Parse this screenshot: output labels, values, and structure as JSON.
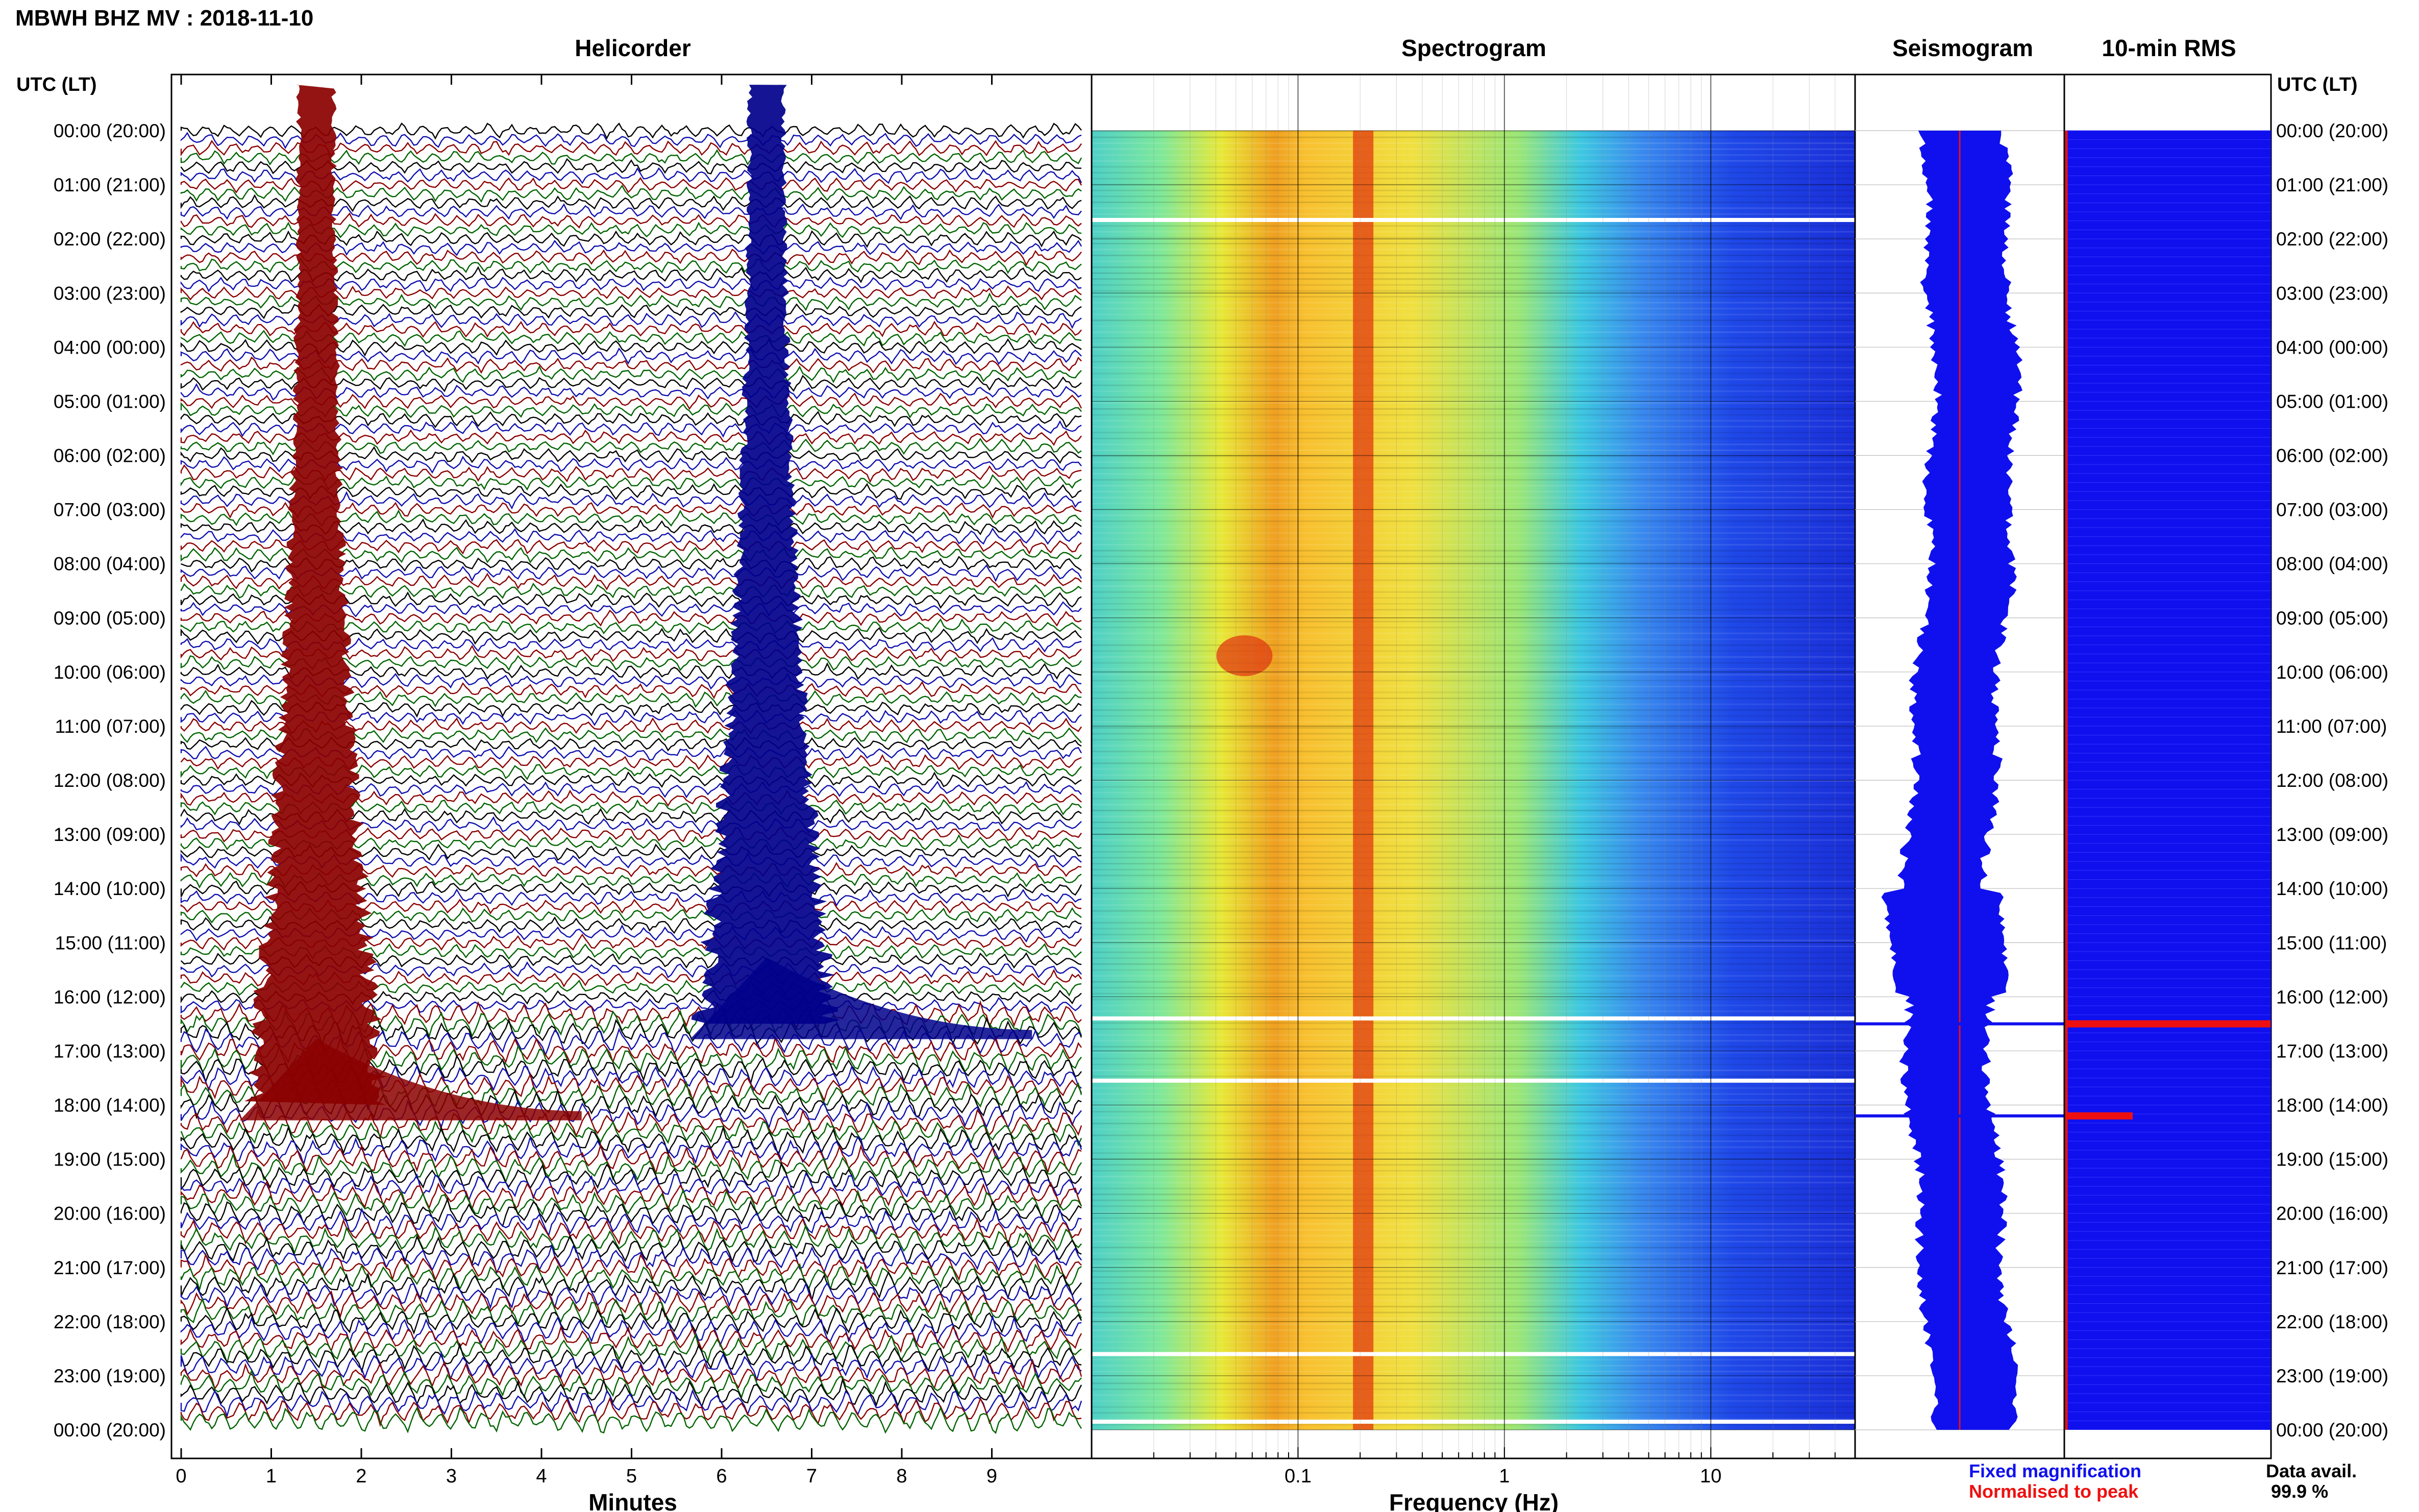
{
  "header": {
    "station_title": "MBWH BHZ MV : 2018-11-10",
    "left_time_header": "UTC (LT)",
    "right_time_header": "UTC (LT)"
  },
  "panels": {
    "helicorder": {
      "title": "Helicorder",
      "xlabel": "Minutes"
    },
    "spectrogram": {
      "title": "Spectrogram",
      "xlabel": "Frequency (Hz)"
    },
    "seismogram": {
      "title": "Seismogram"
    },
    "rms": {
      "title": "10-min RMS"
    }
  },
  "legend": {
    "fixed": "Fixed magnification",
    "normalised": "Normalised to peak",
    "fixed_color": "#1010ee",
    "normalised_color": "#ee1010"
  },
  "availability": {
    "label": "Data avail.",
    "value": "99.9 %"
  },
  "chart_data": [
    {
      "type": "line",
      "panel": "helicorder",
      "title": "Helicorder",
      "xlabel": "Minutes",
      "xlim": [
        0,
        10
      ],
      "x_ticks": [
        "0",
        "1",
        "2",
        "3",
        "4",
        "5",
        "6",
        "7",
        "8",
        "9"
      ],
      "time_labels": [
        "00:00 (20:00)",
        "01:00 (21:00)",
        "02:00 (22:00)",
        "03:00 (23:00)",
        "04:00 (00:00)",
        "05:00 (01:00)",
        "06:00 (02:00)",
        "07:00 (03:00)",
        "08:00 (04:00)",
        "09:00 (05:00)",
        "10:00 (06:00)",
        "11:00 (07:00)",
        "12:00 (08:00)",
        "13:00 (09:00)",
        "14:00 (10:00)",
        "15:00 (11:00)",
        "16:00 (12:00)",
        "17:00 (13:00)",
        "18:00 (14:00)",
        "19:00 (15:00)",
        "20:00 (16:00)",
        "21:00 (17:00)",
        "22:00 (18:00)",
        "23:00 (19:00)",
        "00:00 (20:00)"
      ],
      "trace_colors": [
        "#000000",
        "#1010b0",
        "#8b0000",
        "#006400"
      ],
      "events": [
        {
          "minute": 1.5,
          "start_hour": 0.0,
          "end_hour": 18.0,
          "color": "#8b0000"
        },
        {
          "minute": 6.5,
          "start_hour": 0.0,
          "end_hour": 16.5,
          "color": "#00008b"
        }
      ]
    },
    {
      "type": "heatmap",
      "panel": "spectrogram",
      "title": "Spectrogram",
      "xlabel": "Frequency (Hz)",
      "xscale": "log",
      "xlim": [
        0.01,
        50
      ],
      "x_ticks": [
        "0.1",
        "1",
        "10"
      ],
      "peak_frequency_hz": 0.2,
      "gaps_hours": [
        1.65,
        16.4,
        17.55,
        22.6,
        23.85
      ]
    },
    {
      "type": "line",
      "panel": "seismogram",
      "title": "Seismogram",
      "spikes_hours": [
        16.5,
        18.2
      ]
    },
    {
      "type": "bar",
      "panel": "rms",
      "title": "10-min RMS",
      "orientation": "horizontal",
      "spikes_hours": [
        16.5,
        18.2
      ],
      "spike_color": "#ee1010"
    }
  ]
}
